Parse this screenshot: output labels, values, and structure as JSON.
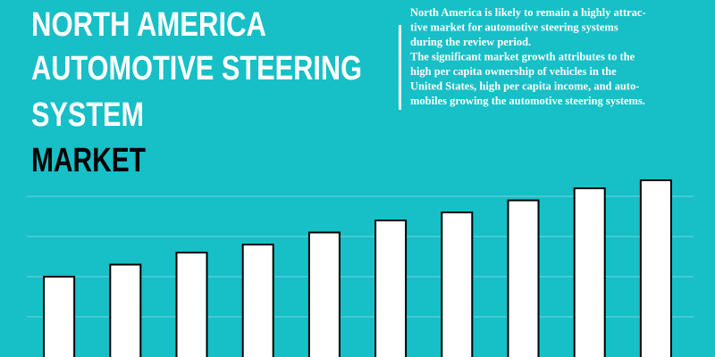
{
  "header": {
    "title_lines": [
      "NORTH AMERICA",
      "AUTOMOTIVE STEERING",
      "SYSTEM"
    ],
    "highlight": "MARKET"
  },
  "description": {
    "lines": [
      "North America is likely to remain a highly attrac-",
      "tive market for automotive steering systems",
      "during the review period.",
      "The significant market growth attributes to the",
      "high per capita ownership of vehicles in the",
      "United States, high per capita income, and auto-",
      "mobiles growing the automotive steering systems."
    ]
  },
  "chart_data": {
    "type": "bar",
    "categories": [
      null,
      null,
      null,
      null,
      null,
      null,
      null,
      null,
      null,
      null
    ],
    "values": [
      2.0,
      2.3,
      2.6,
      2.8,
      3.1,
      3.4,
      3.6,
      3.9,
      4.2,
      4.4
    ],
    "color": "#ffffff",
    "ylim": [
      0,
      5
    ],
    "yticks": [
      1,
      2,
      3,
      4
    ],
    "grid": true
  }
}
